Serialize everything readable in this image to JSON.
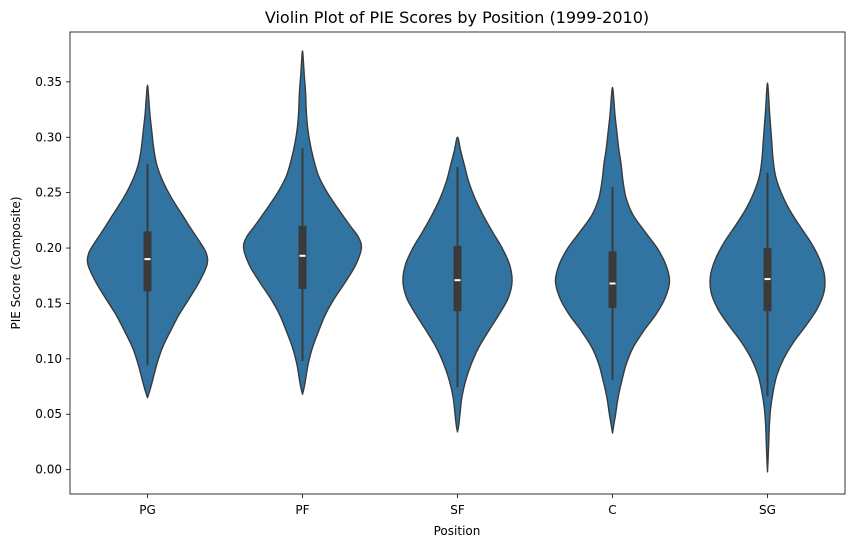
{
  "chart_data": {
    "type": "violin",
    "title": "Violin Plot of PIE Scores by Position (1999-2010)",
    "xlabel": "Position",
    "ylabel": "PIE Score (Composite)",
    "ylim": [
      -0.022,
      0.395
    ],
    "yticks": [
      "0.00",
      "0.05",
      "0.10",
      "0.15",
      "0.20",
      "0.25",
      "0.30",
      "0.35"
    ],
    "grid": false,
    "color": "#3274a1",
    "edge_color": "#3a3a3a",
    "categories": [
      "PG",
      "PF",
      "SF",
      "C",
      "SG"
    ],
    "series": [
      {
        "category": "PG",
        "q1": 0.161,
        "median": 0.19,
        "q3": 0.215,
        "whisker_low": 0.094,
        "whisker_high": 0.276,
        "density": [
          [
            0.065,
            0.0
          ],
          [
            0.07,
            0.03
          ],
          [
            0.08,
            0.08
          ],
          [
            0.095,
            0.15
          ],
          [
            0.11,
            0.24
          ],
          [
            0.125,
            0.37
          ],
          [
            0.14,
            0.51
          ],
          [
            0.155,
            0.68
          ],
          [
            0.17,
            0.84
          ],
          [
            0.185,
            0.96
          ],
          [
            0.195,
            0.95
          ],
          [
            0.205,
            0.85
          ],
          [
            0.215,
            0.73
          ],
          [
            0.23,
            0.56
          ],
          [
            0.245,
            0.39
          ],
          [
            0.26,
            0.25
          ],
          [
            0.275,
            0.15
          ],
          [
            0.29,
            0.1
          ],
          [
            0.305,
            0.07
          ],
          [
            0.32,
            0.04
          ],
          [
            0.335,
            0.02
          ],
          [
            0.347,
            0.0
          ]
        ]
      },
      {
        "category": "PF",
        "q1": 0.163,
        "median": 0.193,
        "q3": 0.22,
        "whisker_low": 0.098,
        "whisker_high": 0.29,
        "density": [
          [
            0.068,
            0.0
          ],
          [
            0.075,
            0.03
          ],
          [
            0.085,
            0.06
          ],
          [
            0.095,
            0.09
          ],
          [
            0.11,
            0.16
          ],
          [
            0.125,
            0.26
          ],
          [
            0.14,
            0.37
          ],
          [
            0.155,
            0.52
          ],
          [
            0.17,
            0.7
          ],
          [
            0.185,
            0.86
          ],
          [
            0.2,
            0.95
          ],
          [
            0.21,
            0.9
          ],
          [
            0.22,
            0.77
          ],
          [
            0.235,
            0.58
          ],
          [
            0.25,
            0.4
          ],
          [
            0.265,
            0.26
          ],
          [
            0.28,
            0.18
          ],
          [
            0.295,
            0.12
          ],
          [
            0.31,
            0.08
          ],
          [
            0.325,
            0.06
          ],
          [
            0.34,
            0.05
          ],
          [
            0.355,
            0.03
          ],
          [
            0.368,
            0.015
          ],
          [
            0.378,
            0.0
          ]
        ]
      },
      {
        "category": "SF",
        "q1": 0.143,
        "median": 0.171,
        "q3": 0.202,
        "whisker_low": 0.074,
        "whisker_high": 0.273,
        "density": [
          [
            0.034,
            0.0
          ],
          [
            0.04,
            0.02
          ],
          [
            0.05,
            0.04
          ],
          [
            0.065,
            0.07
          ],
          [
            0.08,
            0.13
          ],
          [
            0.095,
            0.22
          ],
          [
            0.11,
            0.34
          ],
          [
            0.125,
            0.5
          ],
          [
            0.14,
            0.67
          ],
          [
            0.155,
            0.82
          ],
          [
            0.17,
            0.88
          ],
          [
            0.185,
            0.84
          ],
          [
            0.2,
            0.72
          ],
          [
            0.215,
            0.56
          ],
          [
            0.23,
            0.41
          ],
          [
            0.245,
            0.28
          ],
          [
            0.26,
            0.18
          ],
          [
            0.275,
            0.11
          ],
          [
            0.288,
            0.05
          ],
          [
            0.3,
            0.0
          ]
        ]
      },
      {
        "category": "C",
        "q1": 0.146,
        "median": 0.168,
        "q3": 0.197,
        "whisker_low": 0.081,
        "whisker_high": 0.255,
        "density": [
          [
            0.033,
            0.0
          ],
          [
            0.04,
            0.02
          ],
          [
            0.05,
            0.05
          ],
          [
            0.065,
            0.09
          ],
          [
            0.08,
            0.15
          ],
          [
            0.095,
            0.22
          ],
          [
            0.11,
            0.33
          ],
          [
            0.125,
            0.5
          ],
          [
            0.14,
            0.7
          ],
          [
            0.155,
            0.85
          ],
          [
            0.17,
            0.92
          ],
          [
            0.185,
            0.86
          ],
          [
            0.2,
            0.72
          ],
          [
            0.215,
            0.52
          ],
          [
            0.23,
            0.33
          ],
          [
            0.245,
            0.22
          ],
          [
            0.26,
            0.17
          ],
          [
            0.275,
            0.14
          ],
          [
            0.29,
            0.1
          ],
          [
            0.305,
            0.07
          ],
          [
            0.32,
            0.04
          ],
          [
            0.335,
            0.02
          ],
          [
            0.345,
            0.0
          ]
        ]
      },
      {
        "category": "SG",
        "q1": 0.143,
        "median": 0.172,
        "q3": 0.2,
        "whisker_low": 0.066,
        "whisker_high": 0.268,
        "density": [
          [
            -0.002,
            0.0
          ],
          [
            0.01,
            0.01
          ],
          [
            0.025,
            0.02
          ],
          [
            0.04,
            0.03
          ],
          [
            0.055,
            0.05
          ],
          [
            0.07,
            0.09
          ],
          [
            0.085,
            0.15
          ],
          [
            0.1,
            0.26
          ],
          [
            0.115,
            0.42
          ],
          [
            0.13,
            0.62
          ],
          [
            0.145,
            0.8
          ],
          [
            0.16,
            0.91
          ],
          [
            0.175,
            0.92
          ],
          [
            0.19,
            0.84
          ],
          [
            0.205,
            0.7
          ],
          [
            0.22,
            0.52
          ],
          [
            0.235,
            0.35
          ],
          [
            0.25,
            0.22
          ],
          [
            0.265,
            0.13
          ],
          [
            0.28,
            0.09
          ],
          [
            0.295,
            0.07
          ],
          [
            0.31,
            0.05
          ],
          [
            0.325,
            0.03
          ],
          [
            0.34,
            0.015
          ],
          [
            0.349,
            0.0
          ]
        ]
      }
    ]
  }
}
